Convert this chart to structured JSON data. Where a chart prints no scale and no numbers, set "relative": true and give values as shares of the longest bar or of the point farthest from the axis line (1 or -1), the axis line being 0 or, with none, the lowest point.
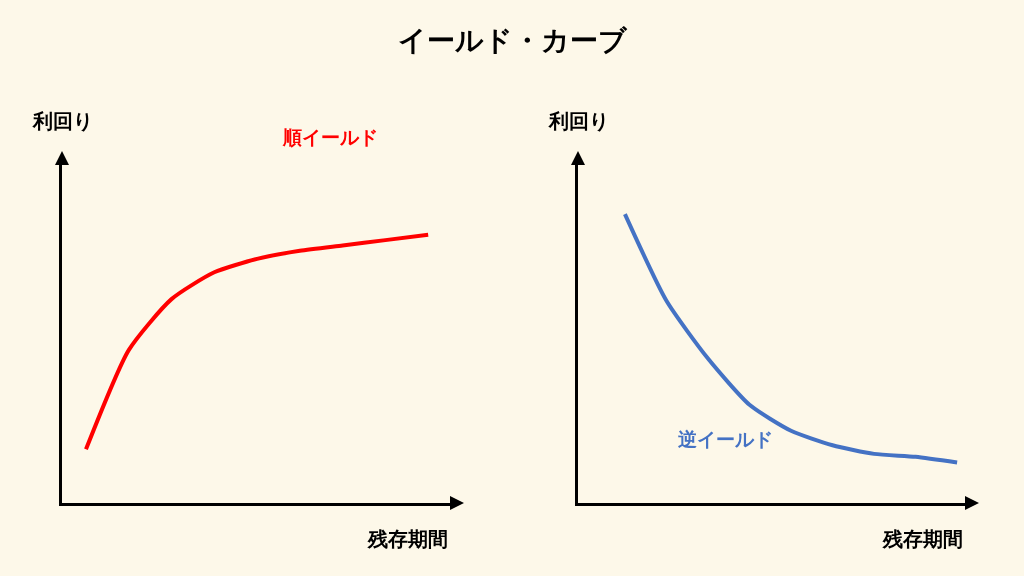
{
  "chart_data": [
    {
      "type": "line",
      "title": "イールド・カーブ",
      "xlabel": "残存期間",
      "ylabel": "利回り",
      "relative": true,
      "categories": [
        null,
        null,
        null,
        null,
        null,
        null,
        null,
        null,
        null
      ],
      "series": [
        {
          "name": "順イールド",
          "color": "#ff0000",
          "values": [
            0.2,
            0.57,
            0.76,
            0.86,
            0.91,
            0.94,
            0.96,
            0.98,
            1
          ]
        }
      ],
      "grid": false,
      "legend": false,
      "marker": "none",
      "line_style": "solid"
    },
    {
      "type": "line",
      "xlabel": "残存期間",
      "ylabel": "利回り",
      "relative": true,
      "categories": [
        null,
        null,
        null,
        null,
        null,
        null,
        null,
        null,
        null
      ],
      "series": [
        {
          "name": "逆イールド",
          "color": "#4472c4",
          "values": [
            1,
            0.7,
            0.5,
            0.34,
            0.25,
            0.2,
            0.17,
            0.16,
            0.14
          ]
        }
      ],
      "grid": false,
      "legend": false,
      "marker": "none",
      "line_style": "solid"
    }
  ]
}
